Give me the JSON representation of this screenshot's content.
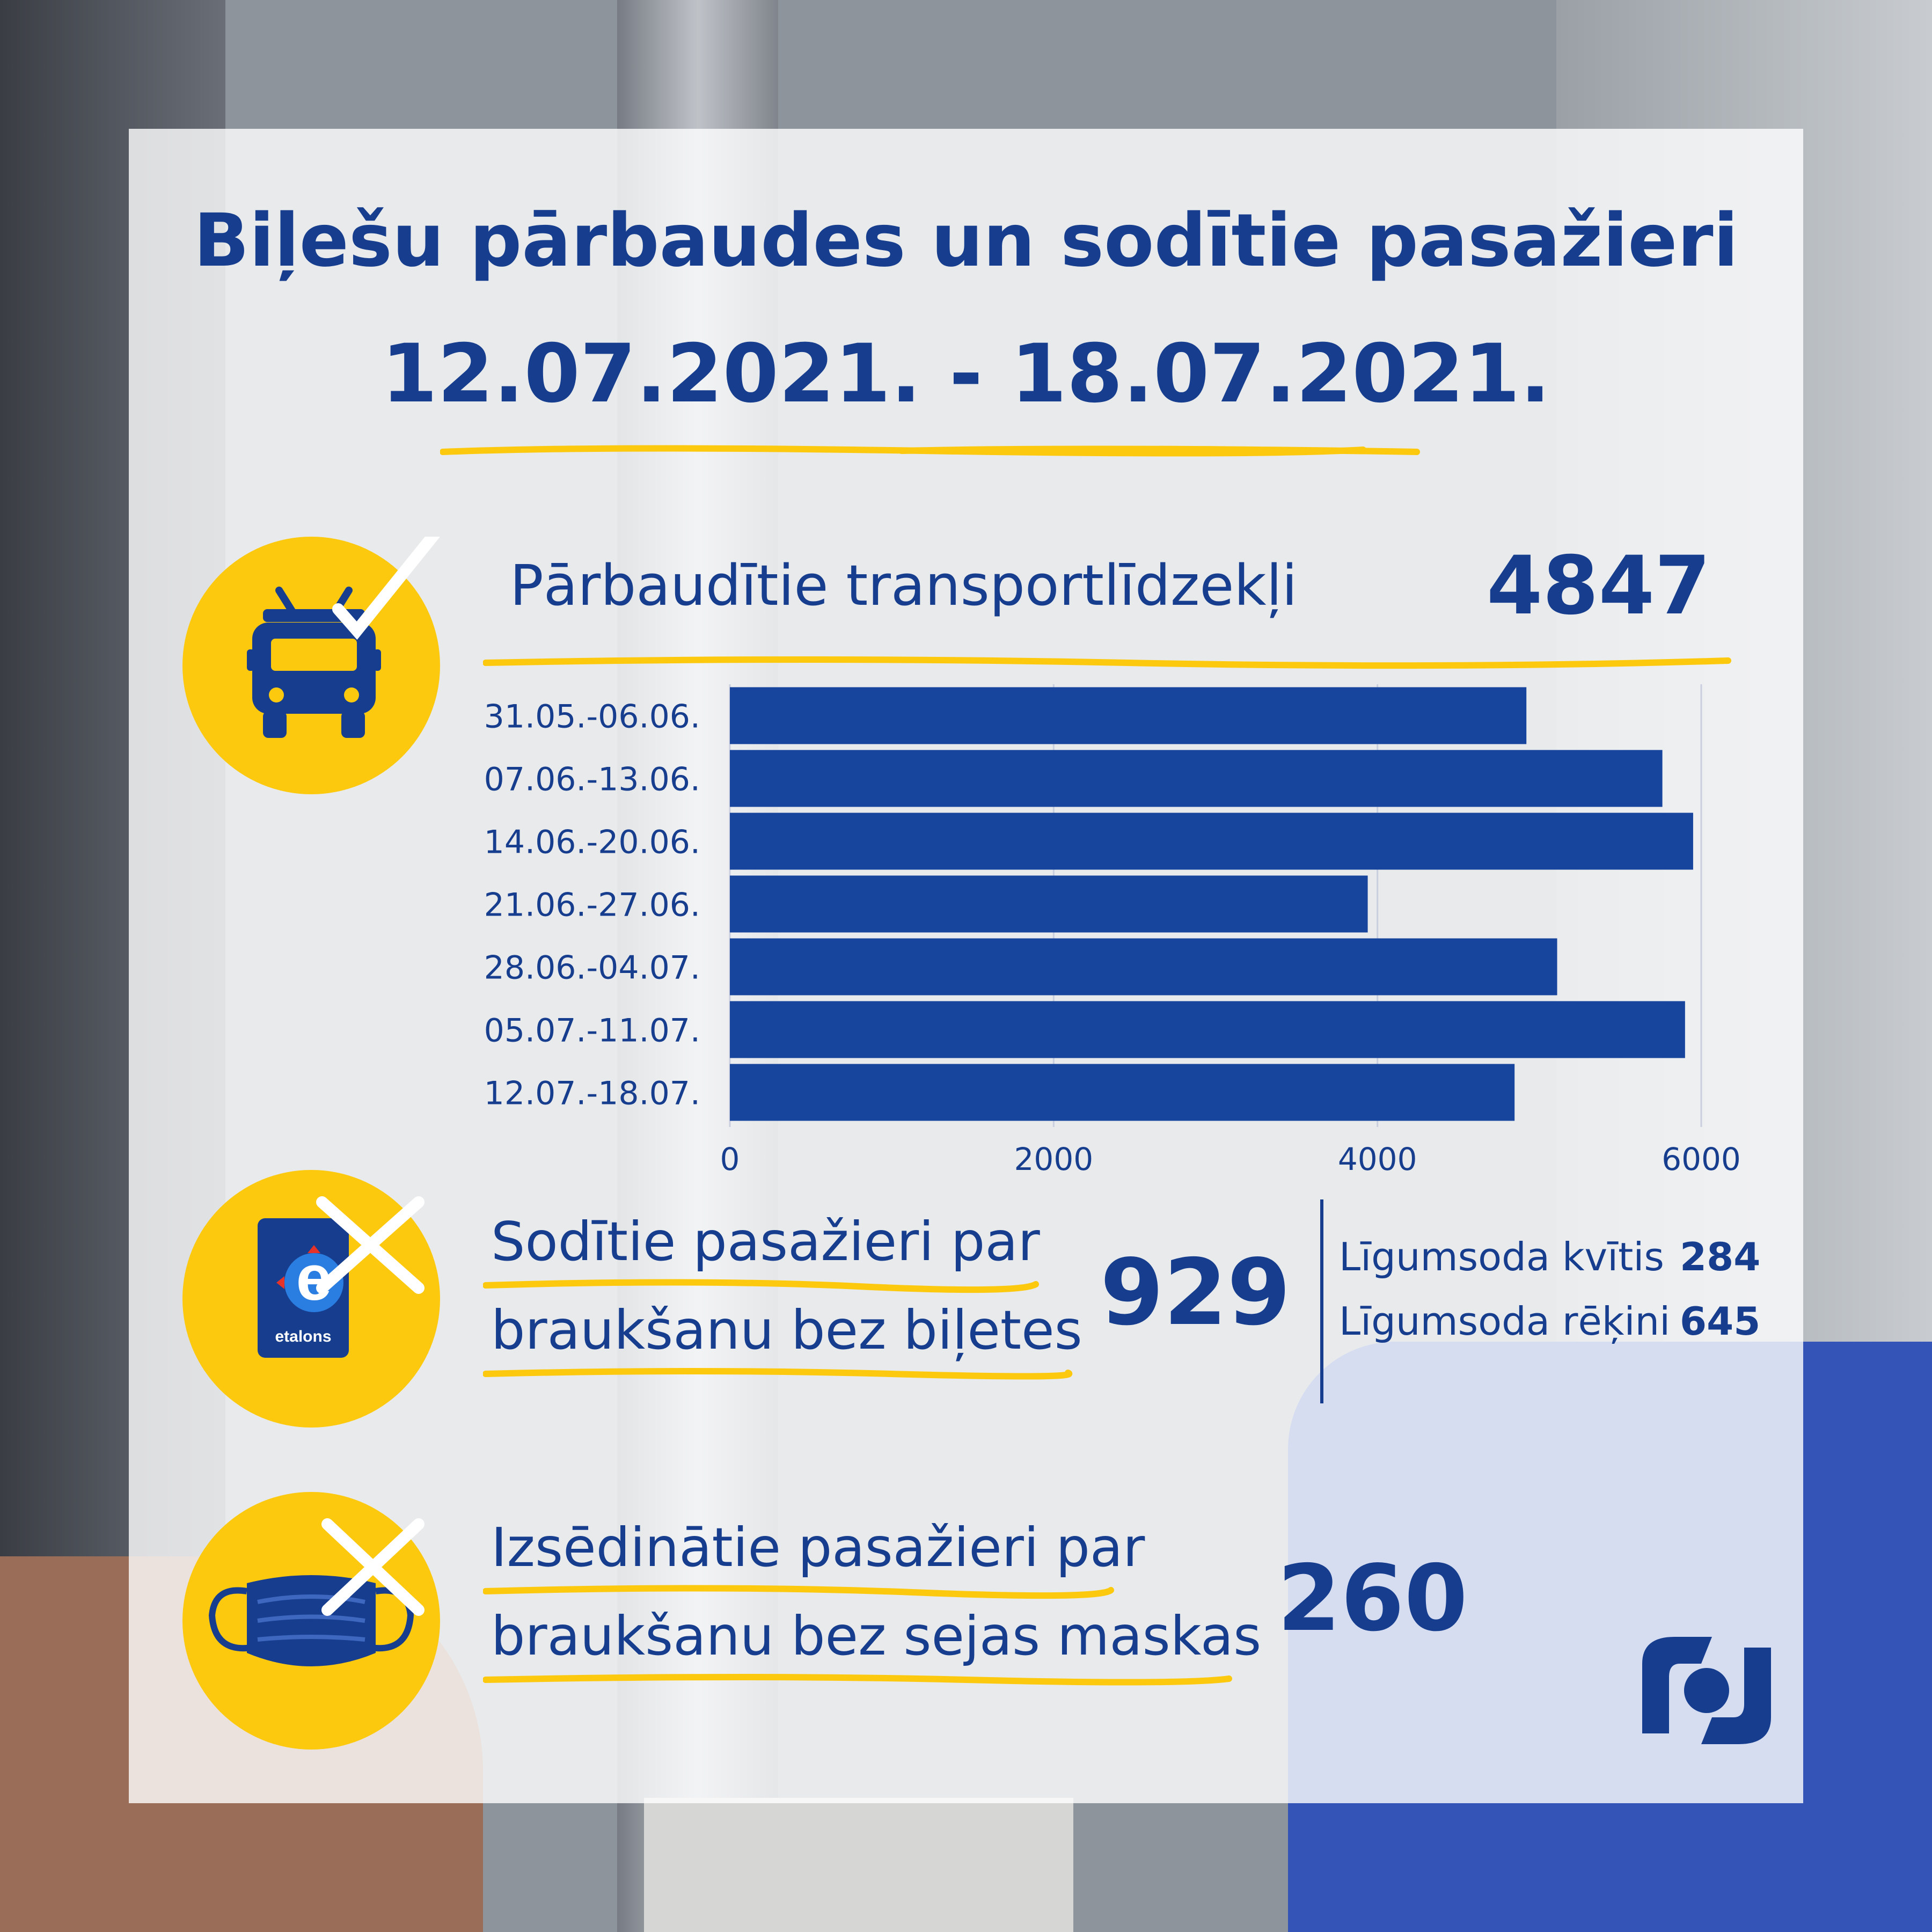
{
  "header": {
    "title": "Biļešu pārbaudes un sodītie pasažieri",
    "date_range": "12.07.2021. - 18.07.2021."
  },
  "vehicles": {
    "label": "Pārbaudītie transportlīdzekļi",
    "value": "4847",
    "icon": "trolleybus-check-icon"
  },
  "fined": {
    "label_line1": "Sodītie pasažieri par",
    "label_line2": "braukšanu bez biļetes",
    "value": "929",
    "icon": "etalons-card-cross-icon",
    "card_text": "etalons",
    "breakdown": [
      {
        "label": "Līgumsoda kvītis",
        "value": "284"
      },
      {
        "label": "Līgumsoda rēķini",
        "value": "645"
      }
    ]
  },
  "mask": {
    "label_line1": "Izsēdinātie pasažieri par",
    "label_line2": "braukšanu bez sejas maskas",
    "value": "260",
    "icon": "face-mask-cross-icon"
  },
  "colors": {
    "navy": "#173e8e",
    "bar": "#17449c",
    "yellow": "#fcc90f"
  },
  "chart_data": {
    "type": "bar",
    "orientation": "horizontal",
    "categories": [
      "31.05.-06.06.",
      "07.06.-13.06.",
      "14.06.-20.06.",
      "21.06.-27.06.",
      "28.06.-04.07.",
      "05.07.-11.07.",
      "12.07.-18.07."
    ],
    "values": [
      4920,
      5760,
      5950,
      3940,
      5110,
      5900,
      4847
    ],
    "xlim": [
      0,
      6000
    ],
    "xticks": [
      0,
      2000,
      4000,
      6000
    ],
    "grid": true
  }
}
